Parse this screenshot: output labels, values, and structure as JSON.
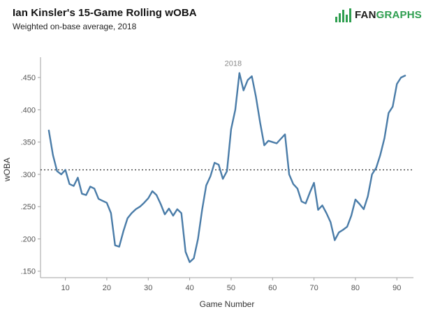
{
  "header": {
    "title": "Ian Kinsler's 15-Game Rolling wOBA",
    "subtitle": "Weighted on-base average, 2018"
  },
  "logo": {
    "text_dark": "FAN",
    "text_green": "GRAPHS",
    "green": "#2e9e4f"
  },
  "chart_data": {
    "type": "line",
    "title": "Ian Kinsler's 15-Game Rolling wOBA",
    "subtitle": "Weighted on-base average, 2018",
    "xlabel": "Game Number",
    "ylabel": "wOBA",
    "legend_position": "none",
    "grid": false,
    "line_color": "#4a7ca8",
    "reference_line": 0.307,
    "reference_style": "dotted",
    "xlim": [
      4,
      94
    ],
    "ylim": [
      0.14,
      0.475
    ],
    "x_ticks": [
      10,
      20,
      30,
      40,
      50,
      60,
      70,
      80,
      90
    ],
    "y_ticks": [
      0.15,
      0.2,
      0.25,
      0.3,
      0.35,
      0.4,
      0.45
    ],
    "annotation": {
      "label": "2018",
      "x": 50.5,
      "y": 0.468
    },
    "x": [
      6,
      7,
      8,
      9,
      10,
      11,
      12,
      13,
      14,
      15,
      16,
      17,
      18,
      19,
      20,
      21,
      22,
      23,
      24,
      25,
      26,
      27,
      28,
      29,
      30,
      31,
      32,
      33,
      34,
      35,
      36,
      37,
      38,
      39,
      40,
      41,
      42,
      43,
      44,
      45,
      46,
      47,
      48,
      49,
      50,
      51,
      52,
      53,
      54,
      55,
      56,
      57,
      58,
      59,
      60,
      61,
      62,
      63,
      64,
      65,
      66,
      67,
      68,
      69,
      70,
      71,
      72,
      73,
      74,
      75,
      76,
      77,
      78,
      79,
      80,
      81,
      82,
      83,
      84,
      85,
      86,
      87,
      88,
      89,
      90,
      91,
      92
    ],
    "values": [
      0.368,
      0.33,
      0.305,
      0.3,
      0.307,
      0.285,
      0.282,
      0.295,
      0.27,
      0.268,
      0.281,
      0.278,
      0.262,
      0.259,
      0.256,
      0.24,
      0.19,
      0.188,
      0.212,
      0.232,
      0.24,
      0.246,
      0.25,
      0.256,
      0.263,
      0.274,
      0.268,
      0.254,
      0.238,
      0.247,
      0.236,
      0.246,
      0.24,
      0.18,
      0.164,
      0.17,
      0.2,
      0.245,
      0.283,
      0.297,
      0.318,
      0.315,
      0.293,
      0.305,
      0.37,
      0.4,
      0.457,
      0.43,
      0.446,
      0.452,
      0.42,
      0.38,
      0.345,
      0.352,
      0.35,
      0.348,
      0.355,
      0.362,
      0.3,
      0.285,
      0.278,
      0.258,
      0.255,
      0.272,
      0.287,
      0.245,
      0.252,
      0.24,
      0.226,
      0.198,
      0.21,
      0.214,
      0.219,
      0.236,
      0.261,
      0.254,
      0.246,
      0.266,
      0.3,
      0.31,
      0.33,
      0.356,
      0.395,
      0.405,
      0.44,
      0.45,
      0.453
    ]
  }
}
